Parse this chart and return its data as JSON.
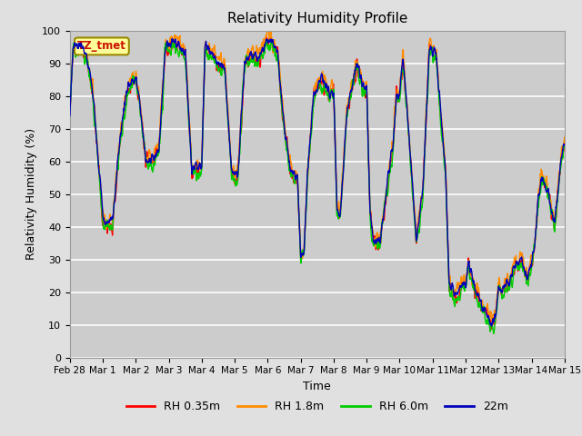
{
  "title": "Relativity Humidity Profile",
  "xlabel": "Time",
  "ylabel": "Relativity Humidity (%)",
  "ylim": [
    0,
    100
  ],
  "legend_labels": [
    "RH 0.35m",
    "RH 1.8m",
    "RH 6.0m",
    "22m"
  ],
  "line_colors": [
    "#ff0000",
    "#ff8c00",
    "#00cc00",
    "#0000bb"
  ],
  "annotation_text": "TZ_tmet",
  "bg_color": "#e8e8e8",
  "plot_bg_color": "#d0d0d0",
  "grid_color": "#ffffff",
  "xtick_labels": [
    "Feb 28",
    "Mar 1",
    "Mar 2",
    "Mar 3",
    "Mar 4",
    "Mar 5",
    "Mar 6",
    "Mar 7",
    "Mar 8",
    "Mar 9",
    "Mar 10",
    "Mar 11",
    "Mar 12",
    "Mar 13",
    "Mar 14",
    "Mar 15"
  ],
  "xtick_positions": [
    0,
    1,
    2,
    3,
    4,
    5,
    6,
    7,
    8,
    9,
    10,
    11,
    12,
    13,
    14,
    15
  ],
  "num_points": 2000,
  "x_start": 0,
  "x_end": 15
}
